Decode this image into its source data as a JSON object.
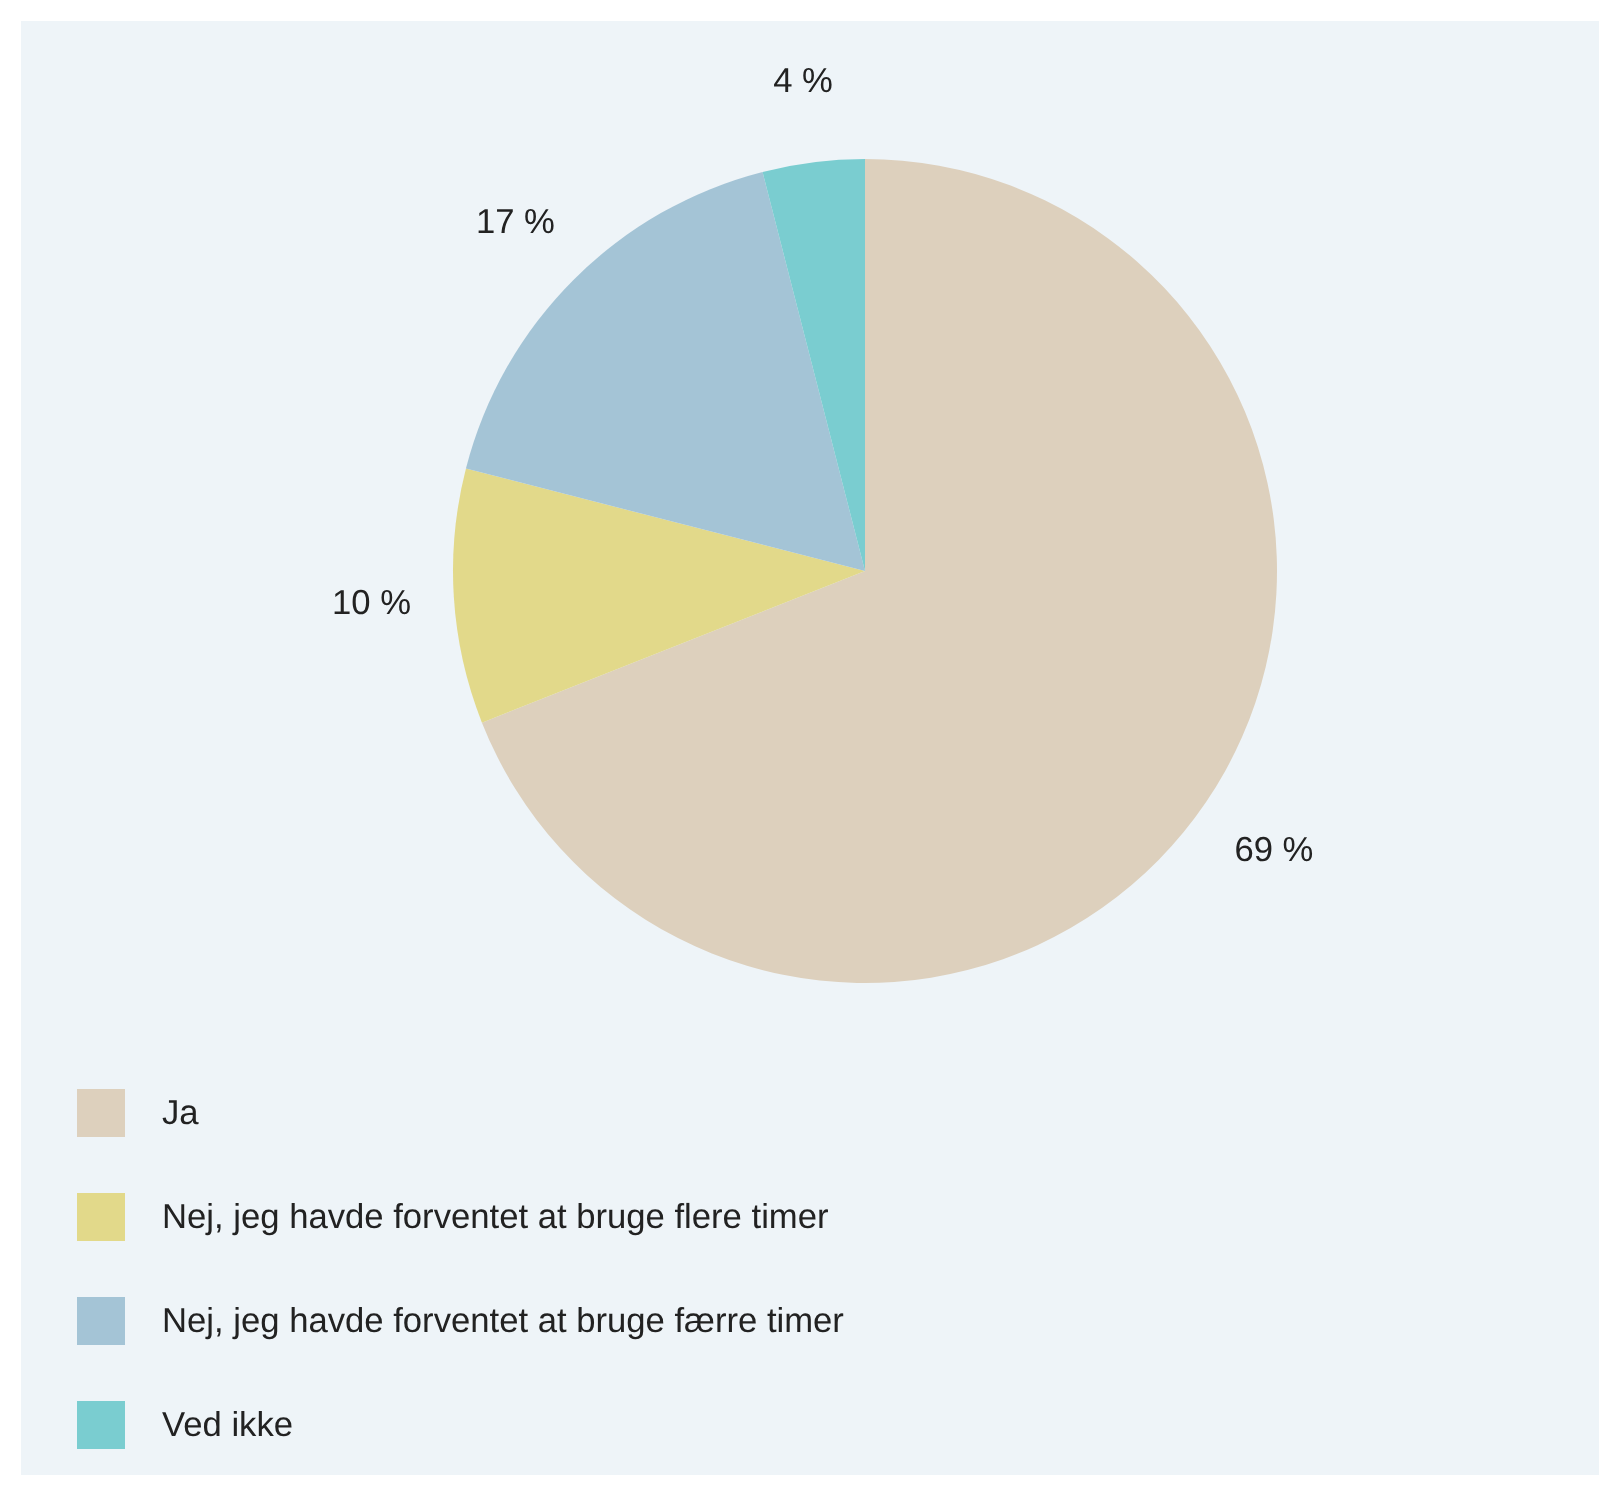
{
  "chart_data": {
    "type": "pie",
    "categories": [
      "Ja",
      "Nej, jeg havde forventet at bruge flere timer",
      "Nej, jeg havde forventet at bruge færre timer",
      "Ved ikke"
    ],
    "values": [
      69,
      10,
      17,
      4
    ],
    "colors": [
      "#ddd0bd",
      "#e2d98a",
      "#a4c4d6",
      "#7acdd0"
    ],
    "value_labels": [
      "69 %",
      "10 %",
      "17 %",
      "4 %"
    ],
    "legend": "bottom left"
  }
}
